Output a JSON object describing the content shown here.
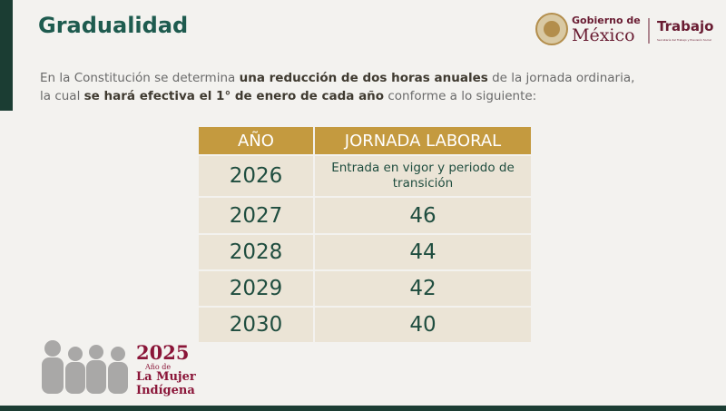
{
  "header": {
    "title": "Gradualidad",
    "logo": {
      "line1": "Gobierno de",
      "line2": "México",
      "agency": "Trabajo",
      "agency_sub": "Secretaría del Trabajo y Previsión Social"
    }
  },
  "intro": {
    "lines": [
      [
        {
          "text": "En la Constitución se determina ",
          "bold": false
        },
        {
          "text": "una reducción de dos horas anuales",
          "bold": true
        },
        {
          "text": " de la jornada ordinaria,",
          "bold": false
        }
      ],
      [
        {
          "text": "la cual ",
          "bold": false
        },
        {
          "text": "se hará efectiva el 1° de enero de cada año",
          "bold": true
        },
        {
          "text": " conforme a lo siguiente:",
          "bold": false
        }
      ]
    ]
  },
  "table": {
    "columns": [
      "AÑO",
      "JORNADA LABORAL"
    ],
    "rows": [
      [
        2026,
        "Entrada en vigor y periodo de transición"
      ],
      [
        2027,
        46
      ],
      [
        2028,
        44
      ],
      [
        2029,
        42
      ],
      [
        2030,
        40
      ]
    ]
  },
  "footer": {
    "year": "2025",
    "line1": "Año de",
    "line2": "La Mujer",
    "line3": "Indígena"
  }
}
